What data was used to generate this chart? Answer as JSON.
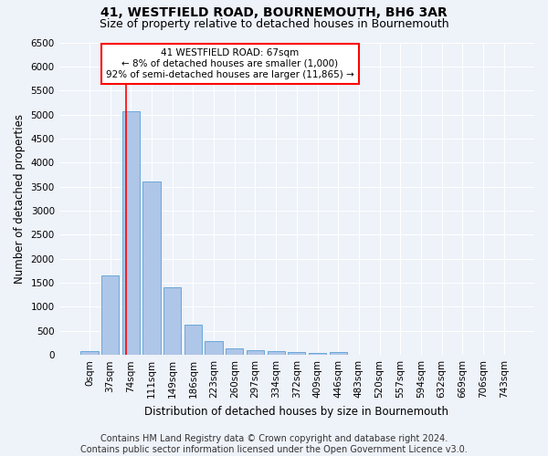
{
  "title": "41, WESTFIELD ROAD, BOURNEMOUTH, BH6 3AR",
  "subtitle": "Size of property relative to detached houses in Bournemouth",
  "xlabel": "Distribution of detached houses by size in Bournemouth",
  "ylabel": "Number of detached properties",
  "footer_line1": "Contains HM Land Registry data © Crown copyright and database right 2024.",
  "footer_line2": "Contains public sector information licensed under the Open Government Licence v3.0.",
  "bar_labels": [
    "0sqm",
    "37sqm",
    "74sqm",
    "111sqm",
    "149sqm",
    "186sqm",
    "223sqm",
    "260sqm",
    "297sqm",
    "334sqm",
    "372sqm",
    "409sqm",
    "446sqm",
    "483sqm",
    "520sqm",
    "557sqm",
    "594sqm",
    "632sqm",
    "669sqm",
    "706sqm",
    "743sqm"
  ],
  "bar_values": [
    75,
    1650,
    5060,
    3600,
    1410,
    620,
    290,
    130,
    100,
    70,
    55,
    45,
    60,
    0,
    0,
    0,
    0,
    0,
    0,
    0,
    0
  ],
  "bar_color": "#aec6e8",
  "bar_edge_color": "#5a9fd4",
  "ylim": [
    0,
    6500
  ],
  "yticks": [
    0,
    500,
    1000,
    1500,
    2000,
    2500,
    3000,
    3500,
    4000,
    4500,
    5000,
    5500,
    6000,
    6500
  ],
  "annotation_title": "41 WESTFIELD ROAD: 67sqm",
  "annotation_line2": "← 8% of detached houses are smaller (1,000)",
  "annotation_line3": "92% of semi-detached houses are larger (11,865) →",
  "bg_color": "#eef2f9",
  "grid_color": "#ffffff",
  "title_fontsize": 10,
  "subtitle_fontsize": 9,
  "axis_label_fontsize": 8.5,
  "tick_fontsize": 7.5,
  "footer_fontsize": 7,
  "annotation_fontsize": 7.5
}
